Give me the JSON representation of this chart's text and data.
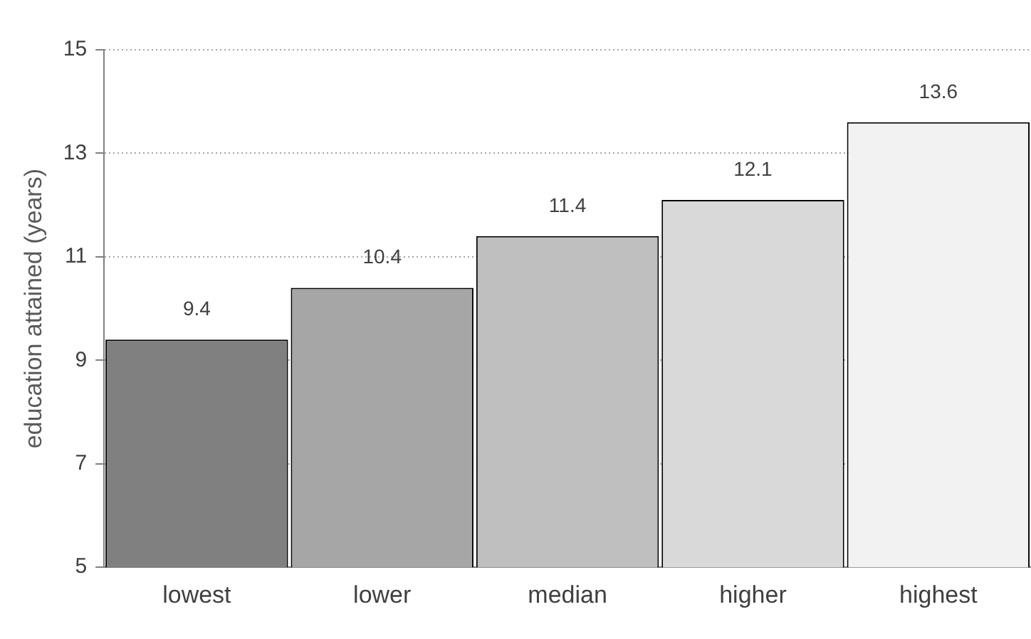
{
  "chart_data": {
    "type": "bar",
    "ylabel": "education attained (years)",
    "categories": [
      "lowest",
      "lower",
      "median",
      "higher",
      "highest"
    ],
    "values": [
      9.4,
      10.4,
      11.4,
      12.1,
      13.6
    ],
    "colors": [
      "#808080",
      "#a6a6a6",
      "#bfbfbf",
      "#d9d9d9",
      "#f2f2f2"
    ],
    "ylim": [
      5,
      15
    ],
    "yticks": [
      5,
      7,
      9,
      11,
      13,
      15
    ],
    "grid": "y",
    "data_labels": true
  }
}
